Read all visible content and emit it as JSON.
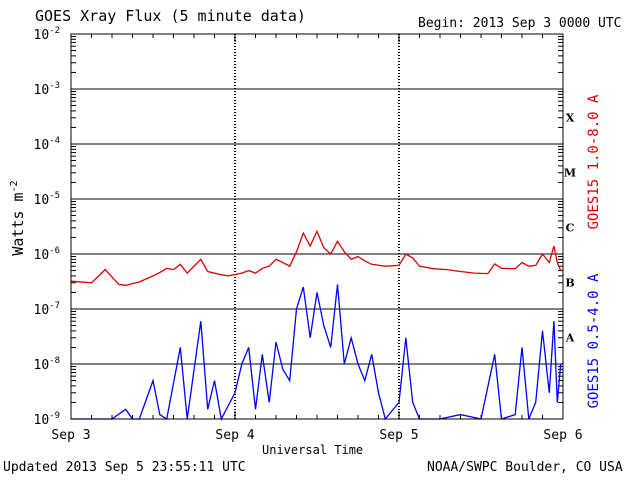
{
  "header": {
    "title": "GOES Xray Flux (5 minute data)",
    "begin": "Begin:  2013 Sep 3 0000 UTC"
  },
  "footer": {
    "updated": "Updated 2013 Sep  5 23:55:11 UTC",
    "credit": "NOAA/SWPC Boulder, CO USA"
  },
  "chart_data": {
    "type": "line",
    "title": "GOES Xray Flux (5 minute data)",
    "xlabel": "Universal Time",
    "ylabel": "Watts m",
    "ylabel_exp": "-2",
    "x_ticks": [
      "Sep 3",
      "Sep 4",
      "Sep 5",
      "Sep 6"
    ],
    "y_ticks": [
      {
        "base": "10",
        "exp": "-2",
        "value": 0.01
      },
      {
        "base": "10",
        "exp": "-3",
        "value": 0.001
      },
      {
        "base": "10",
        "exp": "-4",
        "value": 0.0001
      },
      {
        "base": "10",
        "exp": "-5",
        "value": 1e-05
      },
      {
        "base": "10",
        "exp": "-6",
        "value": 1e-06
      },
      {
        "base": "10",
        "exp": "-7",
        "value": 1e-07
      },
      {
        "base": "10",
        "exp": "-8",
        "value": 1e-08
      },
      {
        "base": "10",
        "exp": "-9",
        "value": 1e-09
      }
    ],
    "ylim": [
      1e-09,
      0.01
    ],
    "yscale": "log",
    "xlim": [
      "2013-09-03 00:00",
      "2013-09-06 00:00"
    ],
    "grid": true,
    "flare_classes": [
      {
        "label": "X",
        "value": 0.0001
      },
      {
        "label": "M",
        "value": 1e-05
      },
      {
        "label": "C",
        "value": 1e-06
      },
      {
        "label": "B",
        "value": 1e-07
      },
      {
        "label": "A",
        "value": 1e-08
      }
    ],
    "series": [
      {
        "name": "GOES15 1.0-8.0 A",
        "color": "#e00000",
        "points": [
          [
            "2013-09-03 00:00",
            3.2e-07
          ],
          [
            "2013-09-03 03:00",
            3e-07
          ],
          [
            "2013-09-03 05:00",
            5.2e-07
          ],
          [
            "2013-09-03 07:00",
            2.8e-07
          ],
          [
            "2013-09-03 08:00",
            2.7e-07
          ],
          [
            "2013-09-03 10:00",
            3.1e-07
          ],
          [
            "2013-09-03 12:00",
            4e-07
          ],
          [
            "2013-09-03 13:00",
            4.6e-07
          ],
          [
            "2013-09-03 14:00",
            5.5e-07
          ],
          [
            "2013-09-03 15:00",
            5.2e-07
          ],
          [
            "2013-09-03 16:00",
            6.5e-07
          ],
          [
            "2013-09-03 17:00",
            4.5e-07
          ],
          [
            "2013-09-03 19:00",
            8e-07
          ],
          [
            "2013-09-03 20:00",
            4.8e-07
          ],
          [
            "2013-09-03 22:00",
            4.2e-07
          ],
          [
            "2013-09-03 23:00",
            4e-07
          ],
          [
            "2013-09-04 01:00",
            4.5e-07
          ],
          [
            "2013-09-04 02:00",
            5e-07
          ],
          [
            "2013-09-04 03:00",
            4.5e-07
          ],
          [
            "2013-09-04 04:00",
            5.5e-07
          ],
          [
            "2013-09-04 05:00",
            6e-07
          ],
          [
            "2013-09-04 06:00",
            8e-07
          ],
          [
            "2013-09-04 07:00",
            7e-07
          ],
          [
            "2013-09-04 08:00",
            6e-07
          ],
          [
            "2013-09-04 09:00",
            1.1e-06
          ],
          [
            "2013-09-04 10:00",
            2.4e-06
          ],
          [
            "2013-09-04 11:00",
            1.4e-06
          ],
          [
            "2013-09-04 12:00",
            2.6e-06
          ],
          [
            "2013-09-04 13:00",
            1.3e-06
          ],
          [
            "2013-09-04 14:00",
            1e-06
          ],
          [
            "2013-09-04 15:00",
            1.7e-06
          ],
          [
            "2013-09-04 16:00",
            1.1e-06
          ],
          [
            "2013-09-04 17:00",
            8e-07
          ],
          [
            "2013-09-04 18:00",
            9e-07
          ],
          [
            "2013-09-04 19:00",
            7.5e-07
          ],
          [
            "2013-09-04 20:00",
            6.5e-07
          ],
          [
            "2013-09-04 22:00",
            6e-07
          ],
          [
            "2013-09-05 00:00",
            6.2e-07
          ],
          [
            "2013-09-05 01:00",
            1e-06
          ],
          [
            "2013-09-05 02:00",
            8.5e-07
          ],
          [
            "2013-09-05 03:00",
            6e-07
          ],
          [
            "2013-09-05 05:00",
            5.4e-07
          ],
          [
            "2013-09-05 07:00",
            5.2e-07
          ],
          [
            "2013-09-05 09:00",
            4.8e-07
          ],
          [
            "2013-09-05 11:00",
            4.5e-07
          ],
          [
            "2013-09-05 13:00",
            4.4e-07
          ],
          [
            "2013-09-05 14:00",
            6.6e-07
          ],
          [
            "2013-09-05 15:00",
            5.5e-07
          ],
          [
            "2013-09-05 17:00",
            5.4e-07
          ],
          [
            "2013-09-05 18:00",
            7e-07
          ],
          [
            "2013-09-05 19:00",
            6e-07
          ],
          [
            "2013-09-05 20:00",
            6.2e-07
          ],
          [
            "2013-09-05 21:00",
            1e-06
          ],
          [
            "2013-09-05 22:00",
            7e-07
          ],
          [
            "2013-09-05 22:40",
            1.4e-06
          ],
          [
            "2013-09-05 23:10",
            7e-07
          ],
          [
            "2013-09-05 23:40",
            5e-07
          ]
        ]
      },
      {
        "name": "GOES15 0.5-4.0 A",
        "color": "#0000ff",
        "points": [
          [
            "2013-09-03 00:00",
            1e-09
          ],
          [
            "2013-09-03 06:00",
            1e-09
          ],
          [
            "2013-09-03 08:00",
            1.5e-09
          ],
          [
            "2013-09-03 09:00",
            1e-09
          ],
          [
            "2013-09-03 10:00",
            1e-09
          ],
          [
            "2013-09-03 12:00",
            5e-09
          ],
          [
            "2013-09-03 13:00",
            1.2e-09
          ],
          [
            "2013-09-03 14:00",
            1e-09
          ],
          [
            "2013-09-03 16:00",
            2e-08
          ],
          [
            "2013-09-03 17:00",
            1e-09
          ],
          [
            "2013-09-03 19:00",
            6e-08
          ],
          [
            "2013-09-03 20:00",
            1.5e-09
          ],
          [
            "2013-09-03 21:00",
            5e-09
          ],
          [
            "2013-09-03 22:00",
            1e-09
          ],
          [
            "2013-09-04 00:00",
            3e-09
          ],
          [
            "2013-09-04 01:00",
            1e-08
          ],
          [
            "2013-09-04 02:00",
            2e-08
          ],
          [
            "2013-09-04 03:00",
            1.5e-09
          ],
          [
            "2013-09-04 04:00",
            1.5e-08
          ],
          [
            "2013-09-04 05:00",
            2e-09
          ],
          [
            "2013-09-04 06:00",
            2.5e-08
          ],
          [
            "2013-09-04 07:00",
            8e-09
          ],
          [
            "2013-09-04 08:00",
            5e-09
          ],
          [
            "2013-09-04 09:00",
            1e-07
          ],
          [
            "2013-09-04 10:00",
            2.5e-07
          ],
          [
            "2013-09-04 11:00",
            3e-08
          ],
          [
            "2013-09-04 12:00",
            2e-07
          ],
          [
            "2013-09-04 13:00",
            5e-08
          ],
          [
            "2013-09-04 14:00",
            2e-08
          ],
          [
            "2013-09-04 15:00",
            2.8e-07
          ],
          [
            "2013-09-04 16:00",
            1e-08
          ],
          [
            "2013-09-04 17:00",
            3e-08
          ],
          [
            "2013-09-04 18:00",
            1e-08
          ],
          [
            "2013-09-04 19:00",
            5e-09
          ],
          [
            "2013-09-04 20:00",
            1.5e-08
          ],
          [
            "2013-09-04 21:00",
            3e-09
          ],
          [
            "2013-09-04 22:00",
            1e-09
          ],
          [
            "2013-09-05 00:00",
            2e-09
          ],
          [
            "2013-09-05 01:00",
            3e-08
          ],
          [
            "2013-09-05 02:00",
            2e-09
          ],
          [
            "2013-09-05 03:00",
            1e-09
          ],
          [
            "2013-09-05 06:00",
            1e-09
          ],
          [
            "2013-09-05 09:00",
            1.2e-09
          ],
          [
            "2013-09-05 12:00",
            1e-09
          ],
          [
            "2013-09-05 14:00",
            1.5e-08
          ],
          [
            "2013-09-05 15:00",
            1e-09
          ],
          [
            "2013-09-05 17:00",
            1.2e-09
          ],
          [
            "2013-09-05 18:00",
            2e-08
          ],
          [
            "2013-09-05 19:00",
            1e-09
          ],
          [
            "2013-09-05 20:00",
            2e-09
          ],
          [
            "2013-09-05 21:00",
            4e-08
          ],
          [
            "2013-09-05 22:00",
            3e-09
          ],
          [
            "2013-09-05 22:40",
            6e-08
          ],
          [
            "2013-09-05 23:10",
            2e-09
          ],
          [
            "2013-09-05 23:40",
            1e-08
          ]
        ]
      }
    ]
  }
}
